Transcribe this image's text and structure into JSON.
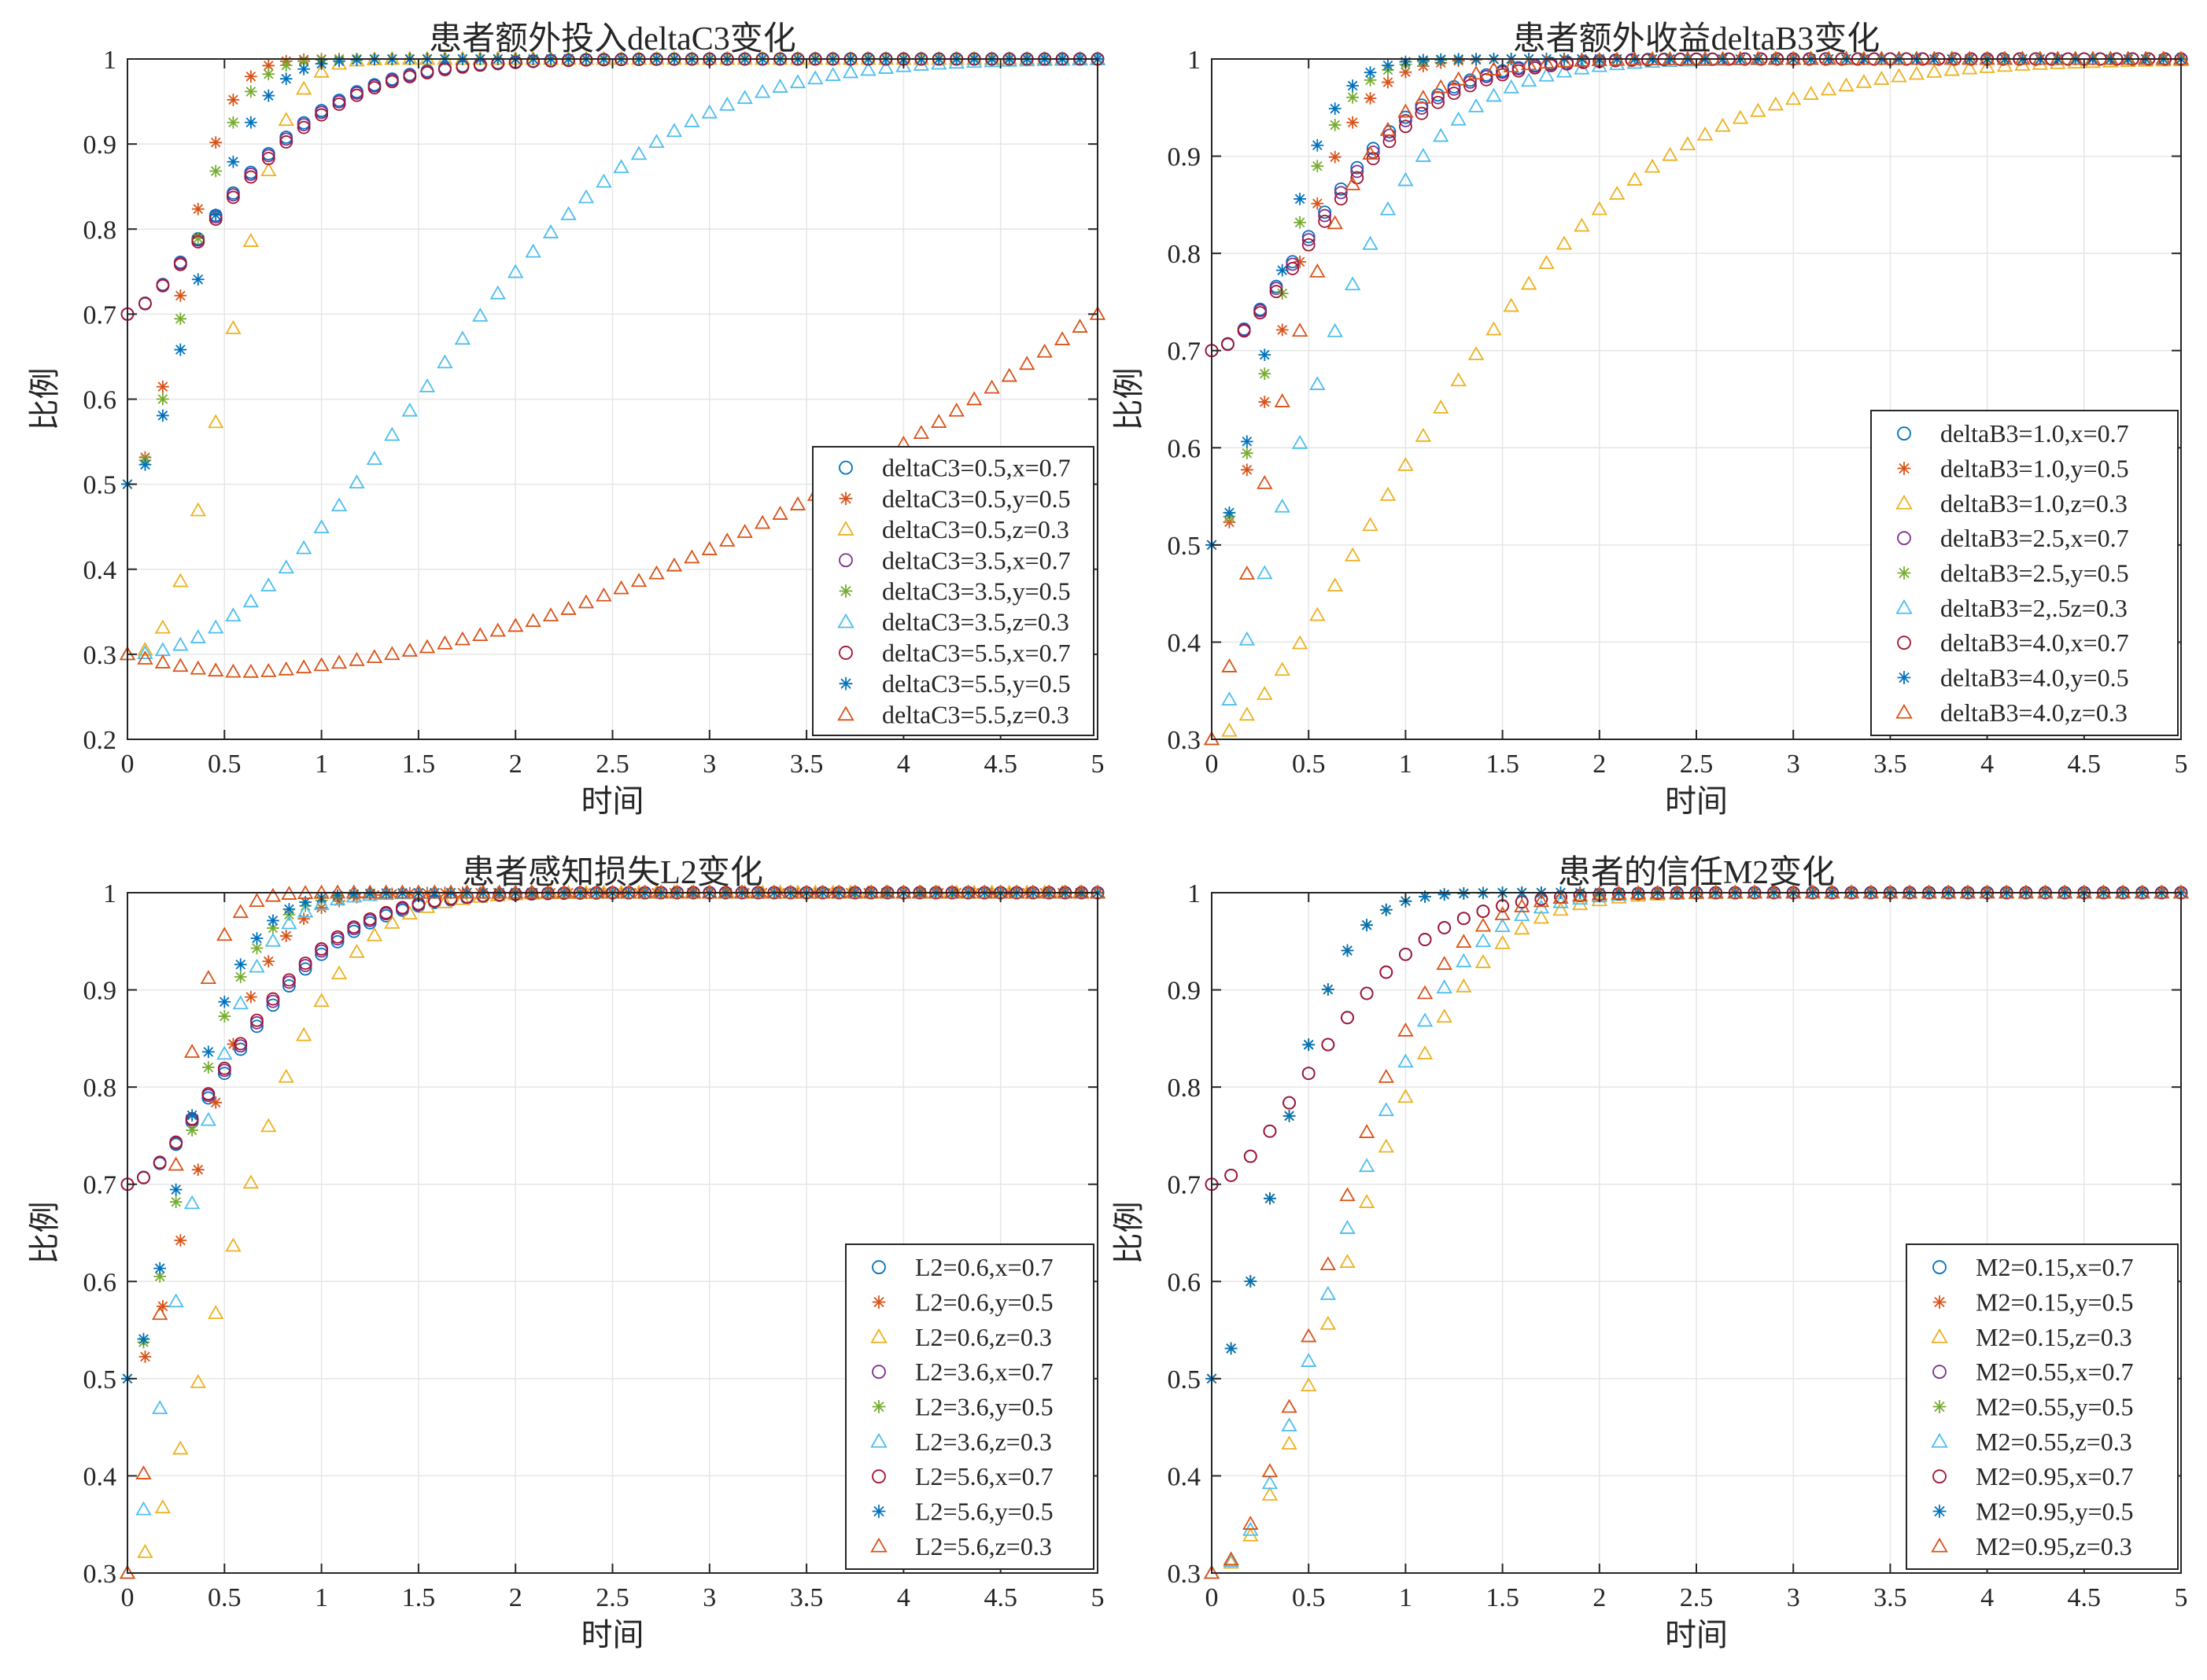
{
  "palette": [
    "#0072BD",
    "#D95319",
    "#EDB120",
    "#7E2F8E",
    "#77AC30",
    "#4DBEEE",
    "#A2142F",
    "#0072BD",
    "#D95319"
  ],
  "chart_data": [
    {
      "type": "scatter",
      "title": "患者额外投入deltaC3变化",
      "xlabel": "时间",
      "ylabel": "比例",
      "xlim": [
        0,
        5
      ],
      "ylim": [
        0.2,
        1
      ],
      "xticks": [
        "0",
        "0.5",
        "1",
        "1.5",
        "2",
        "2.5",
        "3",
        "3.5",
        "4",
        "4.5",
        "5"
      ],
      "yticks": [
        "0.2",
        "0.3",
        "0.4",
        "0.5",
        "0.6",
        "0.7",
        "0.8",
        "0.9",
        "1"
      ],
      "grid": true,
      "legend_position": "bottom-right",
      "series": [
        {
          "name": "deltaC3=0.5,x=0.7",
          "marker": "circle",
          "start": 0.7,
          "rate": 1.5,
          "hill": 1.5,
          "n": 55
        },
        {
          "name": "deltaC3=0.5,y=0.5",
          "marker": "star",
          "start": 0.5,
          "rate": 3.2,
          "hill": 2.0,
          "n": 55
        },
        {
          "name": "deltaC3=0.5,z=0.3",
          "marker": "triangle",
          "start": 0.3,
          "rate": 1.95,
          "hill": 2.6,
          "n": 55
        },
        {
          "name": "deltaC3=3.5,x=0.7",
          "marker": "circle",
          "start": 0.7,
          "rate": 1.48,
          "hill": 1.5,
          "n": 55
        },
        {
          "name": "deltaC3=3.5,y=0.5",
          "marker": "star",
          "start": 0.5,
          "rate": 2.9,
          "hill": 1.95,
          "n": 55
        },
        {
          "name": "deltaC3=3.5,z=0.3",
          "marker": "triangle",
          "start": 0.3,
          "rate": 0.58,
          "hill": 2.1,
          "n": 55
        },
        {
          "name": "deltaC3=5.5,x=0.7",
          "marker": "circle",
          "start": 0.7,
          "rate": 1.45,
          "hill": 1.5,
          "n": 55
        },
        {
          "name": "deltaC3=5.5,y=0.5",
          "marker": "star",
          "start": 0.5,
          "rate": 2.5,
          "hill": 1.9,
          "n": 55
        },
        {
          "name": "deltaC3=5.5,z=0.3",
          "marker": "triangle",
          "start": 0.3,
          "dip": true,
          "end": 0.7,
          "n": 55
        }
      ]
    },
    {
      "type": "scatter",
      "title": "患者额外收益deltaB3变化",
      "xlabel": "时间",
      "ylabel": "比例",
      "xlim": [
        0,
        5
      ],
      "ylim": [
        0.3,
        1
      ],
      "xticks": [
        "0",
        "0.5",
        "1",
        "1.5",
        "2",
        "2.5",
        "3",
        "3.5",
        "4",
        "4.5",
        "5"
      ],
      "yticks": [
        "0.3",
        "0.4",
        "0.5",
        "0.6",
        "0.7",
        "0.8",
        "0.9",
        "1"
      ],
      "grid": true,
      "legend_position": "bottom-right",
      "series": [
        {
          "name": "deltaB3=1.0,x=0.7",
          "marker": "circle",
          "start": 0.7,
          "rate": 1.48,
          "hill": 1.7,
          "n": 60
        },
        {
          "name": "deltaB3=1.0,y=0.5",
          "marker": "star",
          "start": 0.5,
          "rate": 2.3,
          "hill": 1.8,
          "n": 55
        },
        {
          "name": "deltaB3=1.0,z=0.3",
          "marker": "triangle",
          "start": 0.3,
          "rate": 0.72,
          "hill": 1.55,
          "n": 55
        },
        {
          "name": "deltaB3=2.5,x=0.7",
          "marker": "circle",
          "start": 0.7,
          "rate": 1.45,
          "hill": 1.7,
          "n": 60
        },
        {
          "name": "deltaB3=2.5,y=0.5",
          "marker": "star",
          "start": 0.5,
          "rate": 2.6,
          "hill": 1.8,
          "n": 55
        },
        {
          "name": "deltaB3=2,.5z=0.3",
          "marker": "triangle",
          "start": 0.3,
          "rate": 1.6,
          "hill": 1.4,
          "n": 55
        },
        {
          "name": "deltaB3=4.0,x=0.7",
          "marker": "circle",
          "start": 0.7,
          "rate": 1.4,
          "hill": 1.7,
          "n": 60
        },
        {
          "name": "deltaB3=4.0,y=0.5",
          "marker": "star",
          "start": 0.5,
          "rate": 2.8,
          "hill": 1.8,
          "n": 55
        },
        {
          "name": "deltaB3=4.0,z=0.3",
          "marker": "triangle",
          "start": 0.3,
          "rate": 2.2,
          "hill": 1.3,
          "n": 55
        }
      ]
    },
    {
      "type": "scatter",
      "title": "患者感知损失L2变化",
      "xlabel": "时间",
      "ylabel": "比例",
      "xlim": [
        0,
        5
      ],
      "ylim": [
        0.3,
        1
      ],
      "xticks": [
        "0",
        "0.5",
        "1",
        "1.5",
        "2",
        "2.5",
        "3",
        "3.5",
        "4",
        "4.5",
        "5"
      ],
      "yticks": [
        "0.3",
        "0.4",
        "0.5",
        "0.6",
        "0.7",
        "0.8",
        "0.9",
        "1"
      ],
      "grid": true,
      "legend_position": "bottom-right",
      "series": [
        {
          "name": "L2=0.6,x=0.7",
          "marker": "circle",
          "start": 0.7,
          "rate": 1.45,
          "hill": 1.7,
          "n": 60
        },
        {
          "name": "L2=0.6,y=0.5",
          "marker": "star",
          "start": 0.5,
          "rate": 2.25,
          "hill": 1.8,
          "n": 55
        },
        {
          "name": "L2=0.6,z=0.3",
          "marker": "triangle",
          "start": 0.3,
          "rate": 1.6,
          "hill": 1.7,
          "n": 55
        },
        {
          "name": "L2=3.6,x=0.7",
          "marker": "circle",
          "start": 0.7,
          "rate": 1.48,
          "hill": 1.7,
          "n": 60
        },
        {
          "name": "L2=3.6,y=0.5",
          "marker": "star",
          "start": 0.5,
          "rate": 2.7,
          "hill": 1.6,
          "n": 60
        },
        {
          "name": "L2=3.6,z=0.3",
          "marker": "triangle",
          "start": 0.3,
          "rate": 2.8,
          "hill": 1.5,
          "n": 60
        },
        {
          "name": "L2=5.6,x=0.7",
          "marker": "circle",
          "start": 0.7,
          "rate": 1.5,
          "hill": 1.7,
          "n": 60
        },
        {
          "name": "L2=5.6,y=0.5",
          "marker": "star",
          "start": 0.5,
          "rate": 2.85,
          "hill": 1.6,
          "n": 60
        },
        {
          "name": "L2=5.6,z=0.3",
          "marker": "triangle",
          "start": 0.3,
          "rate": 4.2,
          "hill": 1.6,
          "n": 60
        }
      ]
    },
    {
      "type": "scatter",
      "title": "患者的信任M2变化",
      "xlabel": "时间",
      "ylabel": "比例",
      "xlim": [
        0,
        5
      ],
      "ylim": [
        0.3,
        1
      ],
      "xticks": [
        "0",
        "0.5",
        "1",
        "1.5",
        "2",
        "2.5",
        "3",
        "3.5",
        "4",
        "4.5",
        "5"
      ],
      "yticks": [
        "0.3",
        "0.4",
        "0.5",
        "0.6",
        "0.7",
        "0.8",
        "0.9",
        "1"
      ],
      "grid": true,
      "legend_position": "bottom-right",
      "series": [
        {
          "name": "M2=0.15,x=0.7",
          "marker": "circle",
          "start": 0.7,
          "rate": 1.45,
          "hill": 1.7,
          "n": 50
        },
        {
          "name": "M2=0.15,y=0.5",
          "marker": "star",
          "start": 0.5,
          "rate": 2.45,
          "hill": 1.8,
          "n": 50
        },
        {
          "name": "M2=0.15,z=0.3",
          "marker": "triangle",
          "start": 0.3,
          "rate": 1.25,
          "hill": 1.9,
          "n": 50
        },
        {
          "name": "M2=0.55,x=0.7",
          "marker": "circle",
          "start": 0.7,
          "rate": 1.45,
          "hill": 1.7,
          "n": 50
        },
        {
          "name": "M2=0.55,y=0.5",
          "marker": "star",
          "start": 0.5,
          "rate": 2.45,
          "hill": 1.8,
          "n": 50
        },
        {
          "name": "M2=0.55,z=0.3",
          "marker": "triangle",
          "start": 0.3,
          "rate": 1.35,
          "hill": 1.9,
          "n": 50
        },
        {
          "name": "M2=0.95,x=0.7",
          "marker": "circle",
          "start": 0.7,
          "rate": 1.45,
          "hill": 1.7,
          "n": 50
        },
        {
          "name": "M2=0.95,y=0.5",
          "marker": "star",
          "start": 0.5,
          "rate": 2.45,
          "hill": 1.8,
          "n": 50
        },
        {
          "name": "M2=0.95,z=0.3",
          "marker": "triangle",
          "start": 0.3,
          "rate": 1.45,
          "hill": 1.9,
          "n": 50
        }
      ]
    }
  ]
}
